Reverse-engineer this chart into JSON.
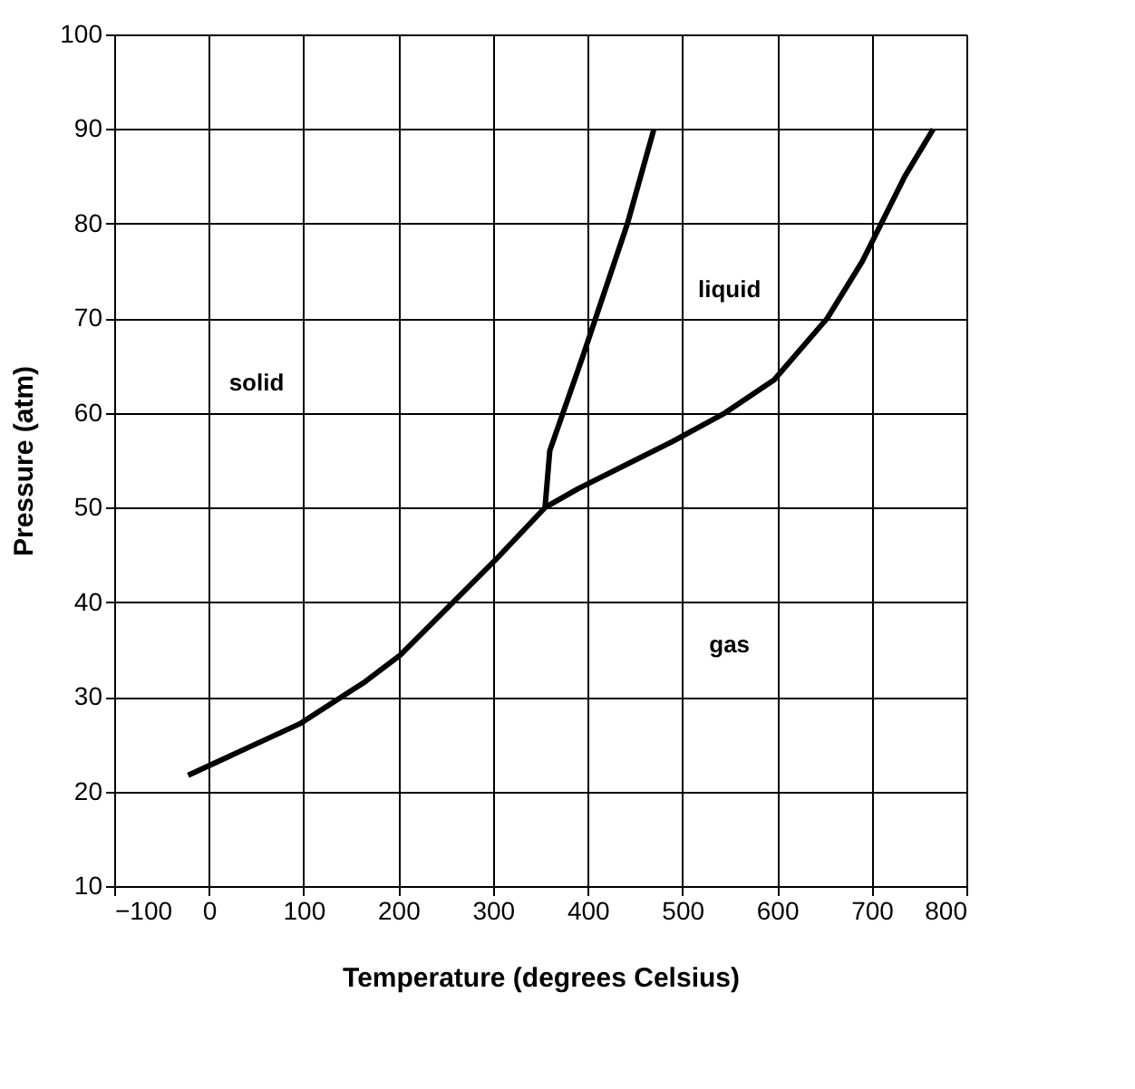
{
  "chart_data": {
    "type": "line",
    "xlabel": "Temperature (degrees Celsius)",
    "ylabel": "Pressure (atm)",
    "xlim": [
      -100,
      800
    ],
    "xticks": [
      -100,
      0,
      100,
      200,
      300,
      400,
      500,
      600,
      700,
      800
    ],
    "ylim": [
      10,
      100
    ],
    "yticks": [
      10,
      20,
      30,
      40,
      50,
      60,
      70,
      80,
      90,
      100
    ],
    "grid": true,
    "marker": "none",
    "line_style": "solid",
    "series": [
      {
        "color": "#000000",
        "x": [
          -22,
          97,
          165,
          202,
          258,
          302,
          355,
          390,
          490,
          545,
          597,
          653,
          690,
          735,
          765
        ],
        "values": [
          21.7,
          27.2,
          31.6,
          34.4,
          40,
          44.4,
          50,
          52,
          57,
          60,
          63.5,
          70,
          76,
          85,
          90
        ]
      },
      {
        "color": "#000000",
        "x": [
          355,
          360,
          395,
          442,
          470
        ],
        "values": [
          50,
          56,
          66,
          80,
          90
        ]
      }
    ],
    "annotations": [
      "solid",
      "liquid",
      "gas"
    ]
  }
}
